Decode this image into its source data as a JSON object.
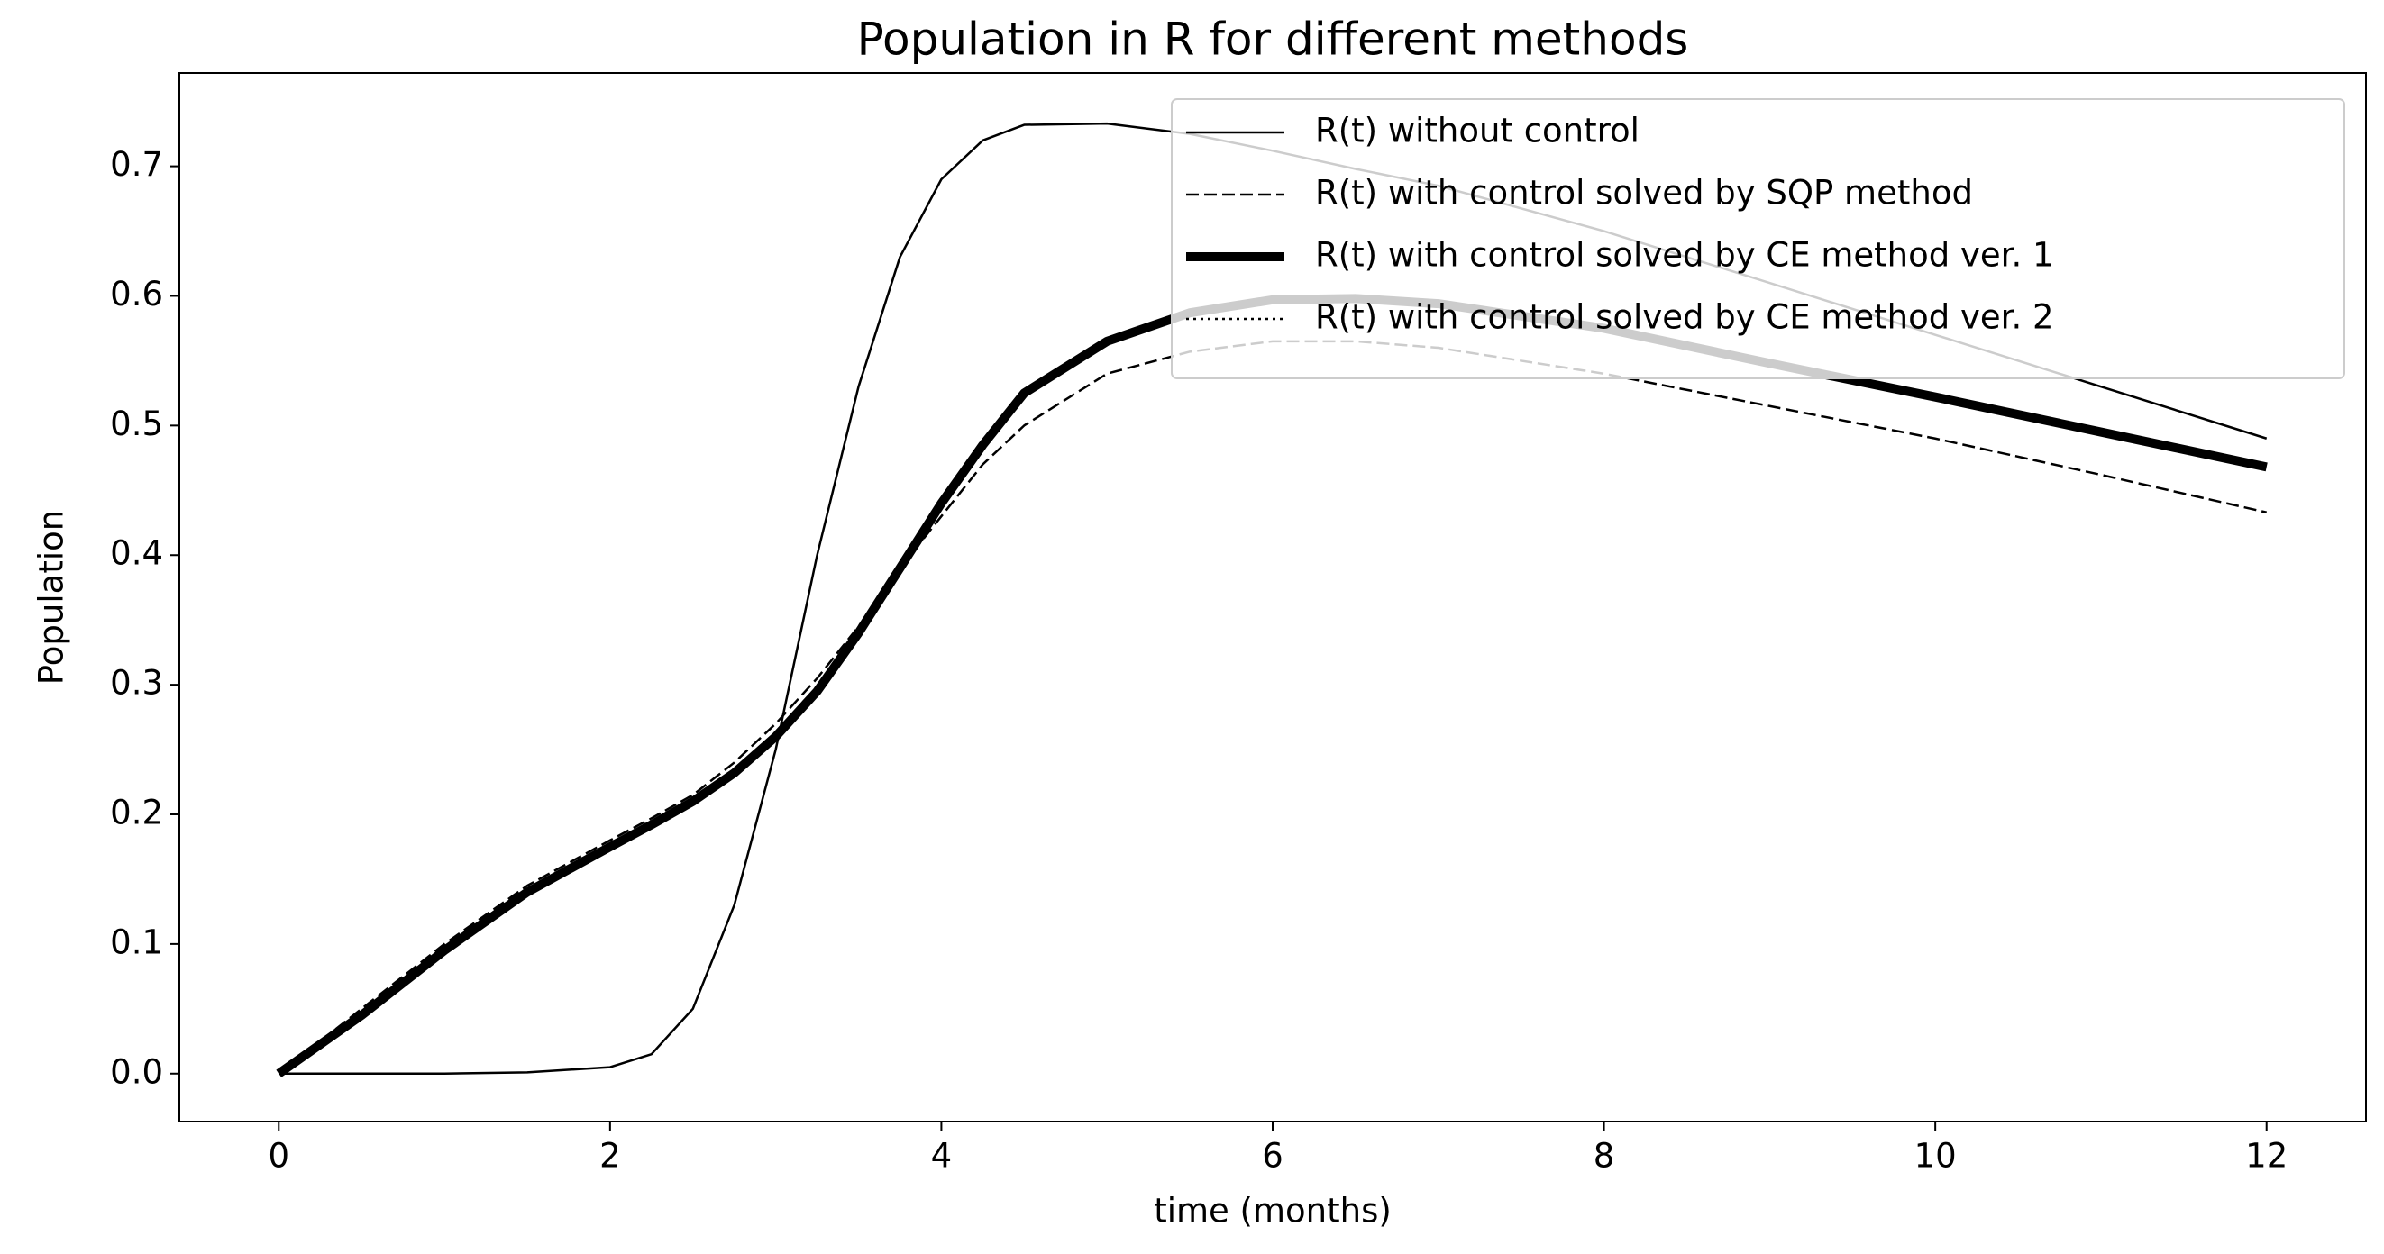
{
  "chart_data": {
    "type": "line",
    "title": "Population in R for different methods",
    "x_label": "time (months)",
    "y_label": "Population",
    "x": [
      0,
      0.5,
      1,
      1.5,
      2,
      2.25,
      2.5,
      2.75,
      3,
      3.25,
      3.5,
      3.75,
      4,
      4.25,
      4.5,
      5,
      5.5,
      6,
      6.5,
      7,
      8,
      9,
      10,
      11,
      12
    ],
    "series": [
      {
        "name": "R(t) without control",
        "color": "#000000",
        "linestyle": "solid",
        "linewidth": 2.5,
        "values": [
          0,
          0,
          0,
          0.001,
          0.005,
          0.015,
          0.05,
          0.13,
          0.25,
          0.4,
          0.53,
          0.63,
          0.69,
          0.72,
          0.732,
          0.733,
          0.725,
          0.712,
          0.698,
          0.685,
          0.65,
          0.61,
          0.57,
          0.53,
          0.49
        ]
      },
      {
        "name": "R(t) with control solved by SQP method",
        "color": "#000000",
        "linestyle": "dashed",
        "linewidth": 2.5,
        "values": [
          0,
          0.05,
          0.1,
          0.145,
          0.18,
          0.197,
          0.215,
          0.24,
          0.27,
          0.305,
          0.345,
          0.39,
          0.43,
          0.47,
          0.5,
          0.54,
          0.557,
          0.565,
          0.565,
          0.56,
          0.54,
          0.515,
          0.49,
          0.462,
          0.433
        ]
      },
      {
        "name": "R(t) with control solved by CE method ver. 1",
        "color": "#000000",
        "linestyle": "solid",
        "linewidth": 10,
        "values": [
          0,
          0.045,
          0.095,
          0.14,
          0.175,
          0.192,
          0.21,
          0.232,
          0.26,
          0.295,
          0.34,
          0.39,
          0.44,
          0.485,
          0.525,
          0.565,
          0.587,
          0.597,
          0.598,
          0.594,
          0.575,
          0.548,
          0.522,
          0.495,
          0.468
        ]
      },
      {
        "name": "R(t) with control solved by CE method ver. 2",
        "color": "#000000",
        "linestyle": "dotted",
        "linewidth": 2.5,
        "values": [
          0,
          0.045,
          0.095,
          0.14,
          0.175,
          0.192,
          0.21,
          0.232,
          0.26,
          0.295,
          0.34,
          0.39,
          0.44,
          0.485,
          0.525,
          0.565,
          0.587,
          0.597,
          0.598,
          0.594,
          0.575,
          0.548,
          0.522,
          0.495,
          0.468
        ]
      }
    ],
    "xlim": [
      -0.6,
      12.6
    ],
    "xticks": [
      0,
      2,
      4,
      6,
      8,
      10,
      12
    ],
    "ylim": [
      -0.037,
      0.772
    ],
    "yticks": [
      {
        "value": 0,
        "label": "0.0"
      },
      0.1,
      0.2,
      0.3,
      0.4,
      0.5,
      0.6,
      0.7
    ],
    "grid": false,
    "legend": "upper right"
  }
}
